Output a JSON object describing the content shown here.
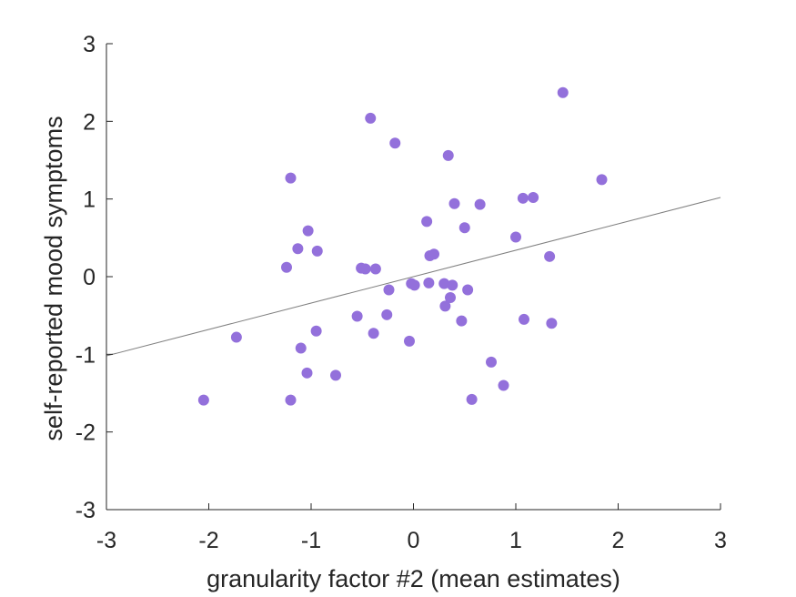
{
  "chart_data": {
    "type": "scatter",
    "title": "",
    "xlabel": "granularity factor #2 (mean estimates)",
    "ylabel": "self-reported mood symptoms",
    "xlim": [
      -3,
      3
    ],
    "ylim": [
      -3,
      3
    ],
    "xticks": [
      -3,
      -2,
      -1,
      0,
      1,
      2,
      3
    ],
    "yticks": [
      -3,
      -2,
      -1,
      0,
      1,
      2,
      3
    ],
    "xtick_labels": [
      "-3",
      "-2",
      "-1",
      "0",
      "1",
      "2",
      "3"
    ],
    "ytick_labels": [
      "-3",
      "-2",
      "-1",
      "0",
      "1",
      "2",
      "3"
    ],
    "grid": false,
    "box": "left-bottom axes only",
    "marker_color": "#9370db",
    "fit_line_color": "#808080",
    "fit_line": {
      "x": [
        -3,
        3
      ],
      "y": [
        -1.02,
        1.02
      ]
    },
    "points": [
      {
        "x": -2.05,
        "y": -1.59
      },
      {
        "x": -1.73,
        "y": -0.78
      },
      {
        "x": -1.24,
        "y": 0.12
      },
      {
        "x": -1.2,
        "y": 1.27
      },
      {
        "x": -1.2,
        "y": -1.59
      },
      {
        "x": -1.13,
        "y": 0.36
      },
      {
        "x": -1.1,
        "y": -0.92
      },
      {
        "x": -1.03,
        "y": 0.59
      },
      {
        "x": -1.04,
        "y": -1.24
      },
      {
        "x": -0.94,
        "y": 0.33
      },
      {
        "x": -0.95,
        "y": -0.7
      },
      {
        "x": -0.76,
        "y": -1.27
      },
      {
        "x": -0.55,
        "y": -0.51
      },
      {
        "x": -0.51,
        "y": 0.11
      },
      {
        "x": -0.47,
        "y": 0.1
      },
      {
        "x": -0.42,
        "y": 2.04
      },
      {
        "x": -0.39,
        "y": -0.73
      },
      {
        "x": -0.37,
        "y": 0.1
      },
      {
        "x": -0.26,
        "y": -0.49
      },
      {
        "x": -0.24,
        "y": -0.17
      },
      {
        "x": -0.18,
        "y": 1.72
      },
      {
        "x": -0.04,
        "y": -0.83
      },
      {
        "x": -0.02,
        "y": -0.09
      },
      {
        "x": 0.01,
        "y": -0.11
      },
      {
        "x": 0.13,
        "y": 0.71
      },
      {
        "x": 0.15,
        "y": -0.08
      },
      {
        "x": 0.16,
        "y": 0.27
      },
      {
        "x": 0.2,
        "y": 0.29
      },
      {
        "x": 0.3,
        "y": -0.09
      },
      {
        "x": 0.31,
        "y": -0.38
      },
      {
        "x": 0.34,
        "y": 1.56
      },
      {
        "x": 0.36,
        "y": -0.27
      },
      {
        "x": 0.38,
        "y": -0.11
      },
      {
        "x": 0.4,
        "y": 0.94
      },
      {
        "x": 0.47,
        "y": -0.57
      },
      {
        "x": 0.5,
        "y": 0.63
      },
      {
        "x": 0.53,
        "y": -0.17
      },
      {
        "x": 0.57,
        "y": -1.58
      },
      {
        "x": 0.65,
        "y": 0.93
      },
      {
        "x": 0.76,
        "y": -1.1
      },
      {
        "x": 0.88,
        "y": -1.4
      },
      {
        "x": 1.0,
        "y": 0.51
      },
      {
        "x": 1.07,
        "y": 1.01
      },
      {
        "x": 1.08,
        "y": -0.55
      },
      {
        "x": 1.17,
        "y": 1.02
      },
      {
        "x": 1.33,
        "y": 0.26
      },
      {
        "x": 1.35,
        "y": -0.6
      },
      {
        "x": 1.46,
        "y": 2.37
      },
      {
        "x": 1.84,
        "y": 1.25
      }
    ]
  }
}
